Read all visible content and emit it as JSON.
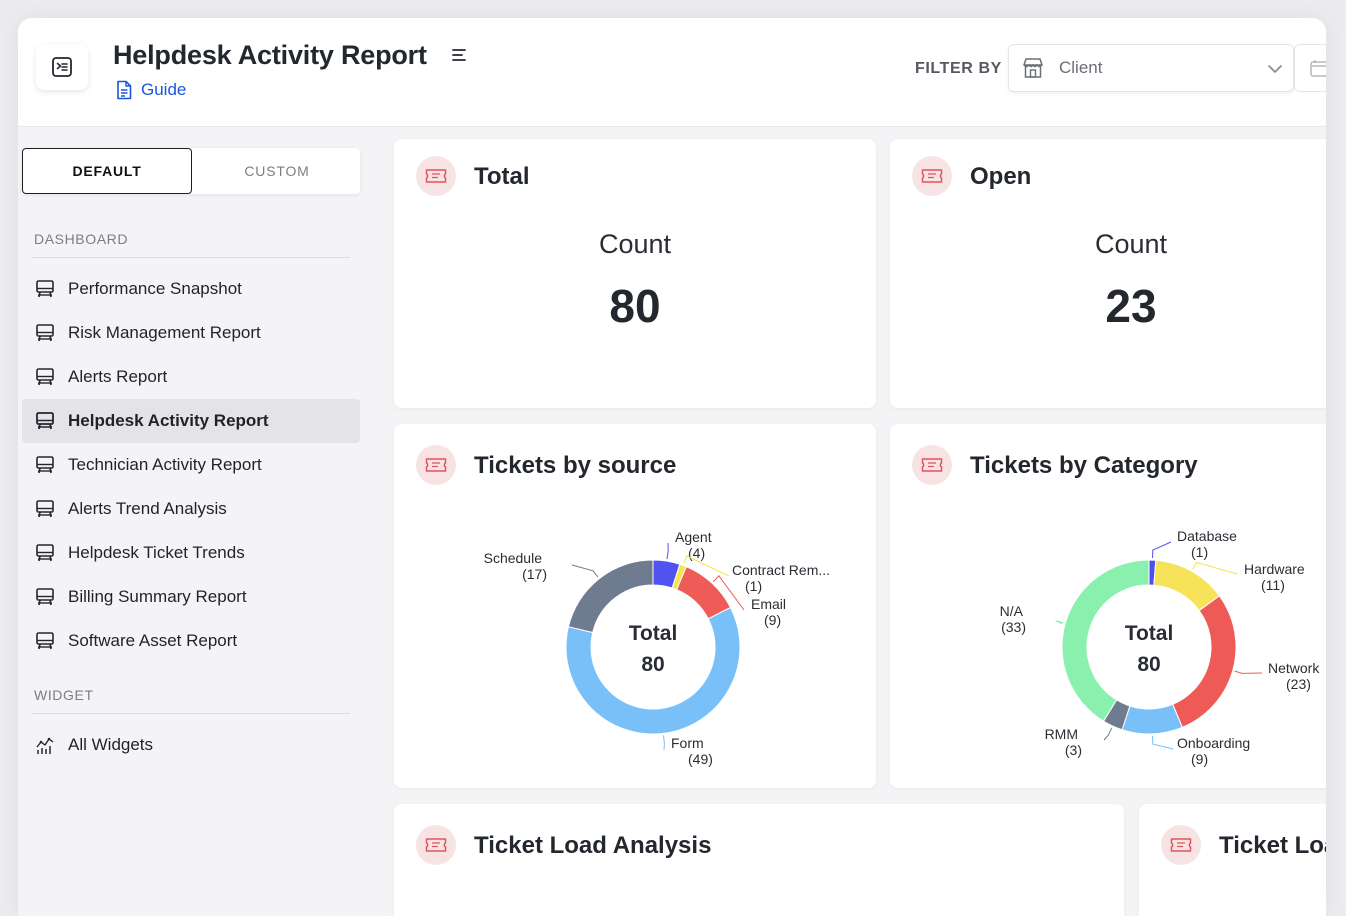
{
  "header": {
    "title": "Helpdesk Activity Report",
    "guide_label": "Guide",
    "filter_label": "FILTER BY",
    "filter_value": "Client"
  },
  "sidebar": {
    "tabs": {
      "default": "DEFAULT",
      "custom": "CUSTOM"
    },
    "dashboard_section": "DASHBOARD",
    "items": [
      {
        "label": "Performance Snapshot",
        "active": false
      },
      {
        "label": "Risk Management Report",
        "active": false
      },
      {
        "label": "Alerts Report",
        "active": false
      },
      {
        "label": "Helpdesk Activity Report",
        "active": true
      },
      {
        "label": "Technician Activity Report",
        "active": false
      },
      {
        "label": "Alerts Trend Analysis",
        "active": false
      },
      {
        "label": "Helpdesk Ticket Trends",
        "active": false
      },
      {
        "label": "Billing Summary Report",
        "active": false
      },
      {
        "label": "Software Asset Report",
        "active": false
      }
    ],
    "widget_section": "WIDGET",
    "widget_items": [
      {
        "label": "All Widgets"
      }
    ]
  },
  "cards": {
    "total": {
      "title": "Total",
      "count_label": "Count",
      "count": "80"
    },
    "open": {
      "title": "Open",
      "count_label": "Count",
      "count": "23"
    },
    "source": {
      "title": "Tickets by source"
    },
    "category": {
      "title": "Tickets by Category"
    },
    "load1": {
      "title": "Ticket Load Analysis"
    },
    "load2": {
      "title": "Ticket Loa"
    }
  },
  "colors": {
    "accent_icon_bg": "#f8e3e4",
    "accent_icon": "#e0545c",
    "link": "#1a56db"
  },
  "chart_data": [
    {
      "type": "pie",
      "title": "Tickets by source",
      "center_label": "Total",
      "center_value": "80",
      "slices": [
        {
          "name": "Agent",
          "value": 4,
          "label": "(4)",
          "color": "#5252f2"
        },
        {
          "name": "Contract Rem...",
          "value": 1,
          "label": "(1)",
          "color": "#f6e352"
        },
        {
          "name": "Email",
          "value": 9,
          "label": "(9)",
          "color": "#ef5b57"
        },
        {
          "name": "Form",
          "value": 49,
          "label": "(49)",
          "color": "#79c0f8"
        },
        {
          "name": "Schedule",
          "value": 17,
          "label": "(17)",
          "color": "#6f7b8e"
        }
      ]
    },
    {
      "type": "pie",
      "title": "Tickets by Category",
      "center_label": "Total",
      "center_value": "80",
      "slices": [
        {
          "name": "Database",
          "value": 1,
          "label": "(1)",
          "color": "#4f4ff0"
        },
        {
          "name": "Hardware",
          "value": 11,
          "label": "(11)",
          "color": "#f7e35a"
        },
        {
          "name": "Network",
          "value": 23,
          "label": "(23)",
          "color": "#ee5b57"
        },
        {
          "name": "Onboarding",
          "value": 9,
          "label": "(9)",
          "color": "#79c0f8"
        },
        {
          "name": "RMM",
          "value": 3,
          "label": "(3)",
          "color": "#6f7b8e"
        },
        {
          "name": "N/A",
          "value": 33,
          "label": "(33)",
          "color": "#8af0ad"
        }
      ]
    }
  ]
}
